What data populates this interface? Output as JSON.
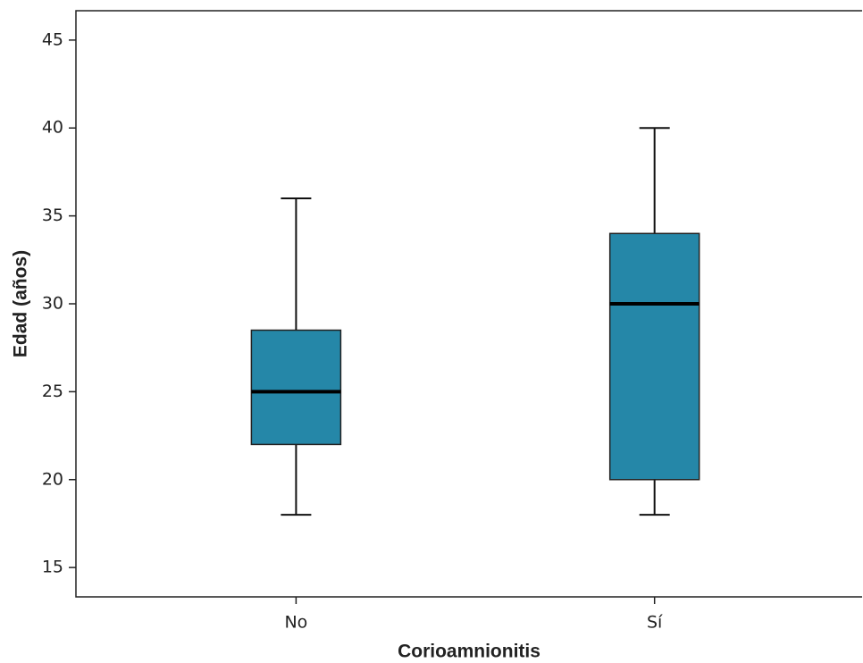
{
  "chart_data": {
    "type": "box",
    "x_label": "Corioamnionitis",
    "y_label": "Edad (años)",
    "categories": [
      "No",
      "Sí"
    ],
    "color": "#2587a8",
    "min": [
      18,
      18
    ],
    "q1": [
      22,
      20
    ],
    "median": [
      25,
      30
    ],
    "q3": [
      28.5,
      34
    ],
    "max": [
      36,
      40
    ],
    "ylim": [
      13.33,
      46.67
    ],
    "yticks": [
      15,
      20,
      25,
      30,
      35,
      40,
      45
    ]
  }
}
